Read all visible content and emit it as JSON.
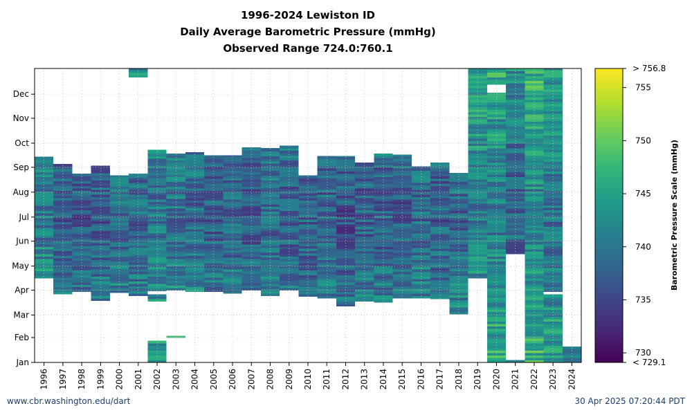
{
  "title": "1996-2024 Lewiston ID",
  "subtitle": "Daily Average Barometric Pressure (mmHg)",
  "range_text": "Observed Range 724.0:760.1",
  "footer": {
    "source": "www.cbr.washington.edu/dart",
    "timestamp": "30 Apr 2025 07:20:44 PDT"
  },
  "chart_data": {
    "type": "heatmap",
    "x_categories": [
      "1996",
      "1997",
      "1998",
      "1999",
      "2000",
      "2001",
      "2002",
      "2003",
      "2004",
      "2005",
      "2006",
      "2007",
      "2008",
      "2009",
      "2010",
      "2011",
      "2012",
      "2013",
      "2014",
      "2015",
      "2016",
      "2017",
      "2018",
      "2019",
      "2020",
      "2021",
      "2022",
      "2023",
      "2024"
    ],
    "y_categories": [
      "Jan",
      "Feb",
      "Mar",
      "Apr",
      "May",
      "Jun",
      "Jul",
      "Aug",
      "Sep",
      "Oct",
      "Nov",
      "Dec"
    ],
    "colorbar": {
      "label": "Barometric Pressure Scale (mmHg)",
      "min": 729.1,
      "max": 756.8,
      "ticks": [
        730,
        735,
        740,
        745,
        750,
        755
      ],
      "min_label": "< 729.1",
      "max_label": "> 756.8",
      "colormap": "viridis"
    },
    "coverage": [
      {
        "year": "1996",
        "segments": [
          [
            105,
            256
          ]
        ],
        "mean": 743
      },
      {
        "year": "1997",
        "segments": [
          [
            85,
            247
          ]
        ],
        "mean": 740
      },
      {
        "year": "1998",
        "segments": [
          [
            88,
            235
          ]
        ],
        "mean": 739
      },
      {
        "year": "1999",
        "segments": [
          [
            77,
            245
          ]
        ],
        "mean": 740
      },
      {
        "year": "2000",
        "segments": [
          [
            87,
            233
          ]
        ],
        "mean": 741
      },
      {
        "year": "2001",
        "segments": [
          [
            83,
            235
          ],
          [
            355,
            366
          ]
        ],
        "mean": 741
      },
      {
        "year": "2002",
        "segments": [
          [
            0,
            27
          ],
          [
            76,
            85
          ],
          [
            89,
            265
          ]
        ],
        "mean": 742
      },
      {
        "year": "2003",
        "segments": [
          [
            31,
            33
          ],
          [
            90,
            260
          ]
        ],
        "mean": 742
      },
      {
        "year": "2004",
        "segments": [
          [
            88,
            262
          ]
        ],
        "mean": 741
      },
      {
        "year": "2005",
        "segments": [
          [
            88,
            258
          ]
        ],
        "mean": 740
      },
      {
        "year": "2006",
        "segments": [
          [
            86,
            258
          ]
        ],
        "mean": 741
      },
      {
        "year": "2007",
        "segments": [
          [
            90,
            268
          ]
        ],
        "mean": 740
      },
      {
        "year": "2008",
        "segments": [
          [
            83,
            267
          ]
        ],
        "mean": 741
      },
      {
        "year": "2009",
        "segments": [
          [
            90,
            270
          ]
        ],
        "mean": 740
      },
      {
        "year": "2010",
        "segments": [
          [
            82,
            233
          ]
        ],
        "mean": 740
      },
      {
        "year": "2011",
        "segments": [
          [
            80,
            257
          ]
        ],
        "mean": 740
      },
      {
        "year": "2012",
        "segments": [
          [
            70,
            257
          ]
        ],
        "mean": 739
      },
      {
        "year": "2013",
        "segments": [
          [
            76,
            249
          ]
        ],
        "mean": 740
      },
      {
        "year": "2014",
        "segments": [
          [
            75,
            260
          ]
        ],
        "mean": 740
      },
      {
        "year": "2015",
        "segments": [
          [
            80,
            259
          ]
        ],
        "mean": 740
      },
      {
        "year": "2016",
        "segments": [
          [
            80,
            244
          ]
        ],
        "mean": 741
      },
      {
        "year": "2017",
        "segments": [
          [
            79,
            249
          ]
        ],
        "mean": 740
      },
      {
        "year": "2018",
        "segments": [
          [
            60,
            236
          ]
        ],
        "mean": 741
      },
      {
        "year": "2019",
        "segments": [
          [
            105,
            366
          ]
        ],
        "mean": 743
      },
      {
        "year": "2020",
        "segments": [
          [
            0,
            336
          ],
          [
            346,
            366
          ]
        ],
        "mean": 743
      },
      {
        "year": "2021",
        "segments": [
          [
            0,
            3
          ],
          [
            135,
            366
          ]
        ],
        "mean": 740
      },
      {
        "year": "2022",
        "segments": [
          [
            0,
            366
          ]
        ],
        "mean": 744
      },
      {
        "year": "2023",
        "segments": [
          [
            0,
            85
          ],
          [
            88,
            366
          ]
        ],
        "mean": 742
      },
      {
        "year": "2024",
        "segments": [
          [
            0,
            20
          ]
        ],
        "mean": 740
      }
    ]
  }
}
